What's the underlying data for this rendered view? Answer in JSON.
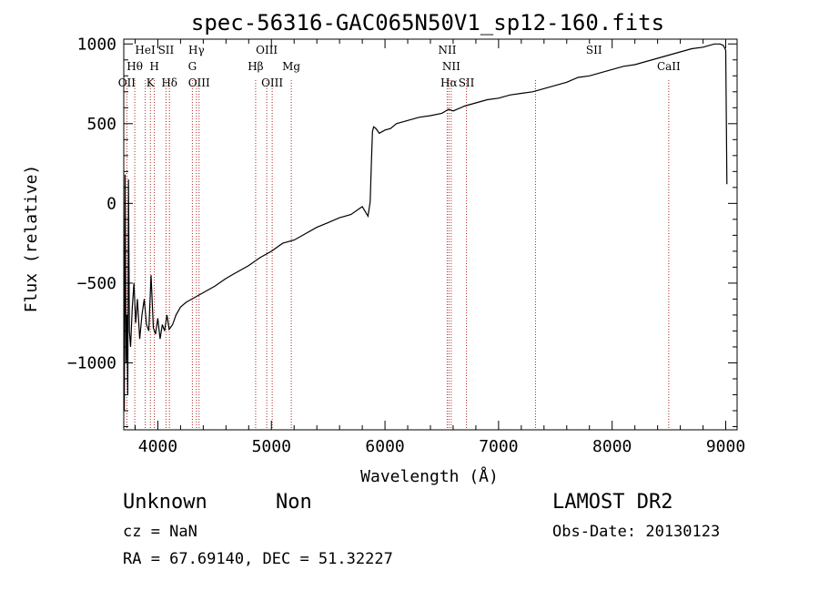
{
  "chart_data": {
    "type": "line",
    "title": "spec-56316-GAC065N50V1_sp12-160.fits",
    "xlabel": "Wavelength (Å)",
    "ylabel": "Flux (relative)",
    "xlim": [
      3700,
      9100
    ],
    "ylim": [
      -1420,
      1030
    ],
    "x_ticks": [
      4000,
      5000,
      6000,
      7000,
      8000,
      9000
    ],
    "y_ticks": [
      -1000,
      -500,
      0,
      500,
      1000
    ],
    "x_tick_labels": [
      "4000",
      "5000",
      "6000",
      "7000",
      "8000",
      "9000"
    ],
    "y_tick_labels": [
      "−1000",
      "−500",
      "0",
      "500",
      "1000"
    ],
    "grid": false,
    "line_color": "#000000",
    "marker_color": "#b22222",
    "series": [
      {
        "x": [
          3705,
          3712,
          3720,
          3728,
          3735,
          3742,
          3750,
          3760,
          3775,
          3790,
          3805,
          3820,
          3840,
          3860,
          3880,
          3900,
          3920,
          3940,
          3960,
          3980,
          4000,
          4020,
          4040,
          4060,
          4080,
          4100,
          4130,
          4160,
          4200,
          4250,
          4300,
          4350,
          4400,
          4450,
          4500,
          4600,
          4700,
          4800,
          4900,
          5000,
          5100,
          5200,
          5300,
          5400,
          5500,
          5600,
          5700,
          5800,
          5850,
          5870,
          5880,
          5890,
          5900,
          5920,
          5950,
          6000,
          6050,
          6100,
          6200,
          6300,
          6400,
          6500,
          6560,
          6600,
          6700,
          6800,
          6900,
          7000,
          7100,
          7200,
          7300,
          7400,
          7500,
          7600,
          7700,
          7800,
          7900,
          8000,
          8100,
          8200,
          8300,
          8400,
          8500,
          8600,
          8700,
          8800,
          8900,
          8950,
          8980,
          9000,
          9010
        ],
        "y": [
          -1300,
          180,
          -1000,
          -700,
          -1200,
          150,
          -800,
          -900,
          -650,
          -500,
          -750,
          -600,
          -850,
          -700,
          -600,
          -760,
          -800,
          -450,
          -780,
          -820,
          -720,
          -850,
          -760,
          -800,
          -700,
          -790,
          -760,
          -700,
          -650,
          -620,
          -600,
          -580,
          -560,
          -540,
          -520,
          -470,
          -430,
          -390,
          -340,
          -300,
          -250,
          -230,
          -190,
          -150,
          -120,
          -90,
          -70,
          -20,
          -80,
          10,
          250,
          450,
          480,
          470,
          440,
          460,
          470,
          500,
          520,
          540,
          550,
          565,
          590,
          580,
          610,
          630,
          650,
          660,
          680,
          690,
          700,
          720,
          740,
          760,
          790,
          800,
          820,
          840,
          860,
          870,
          890,
          910,
          930,
          950,
          970,
          980,
          1000,
          1000,
          990,
          960,
          120
        ]
      }
    ],
    "lines": [
      {
        "name": "OII",
        "x": 3727
      },
      {
        "name": "Hθ",
        "x": 3797
      },
      {
        "name": "HeI",
        "x": 3889
      },
      {
        "name": "K",
        "x": 3934
      },
      {
        "name": "H",
        "x": 3969
      },
      {
        "name": "SII",
        "x": 4072
      },
      {
        "name": "Hδ",
        "x": 4102
      },
      {
        "name": "G",
        "x": 4304
      },
      {
        "name": "Hγ",
        "x": 4340
      },
      {
        "name": "OIII",
        "x": 4363
      },
      {
        "name": "Hβ",
        "x": 4861
      },
      {
        "name": "OIII",
        "x": 4959
      },
      {
        "name": "OIII",
        "x": 5007
      },
      {
        "name": "Mg",
        "x": 5175
      },
      {
        "name": "NII",
        "x": 6548
      },
      {
        "name": "Hα",
        "x": 6563
      },
      {
        "name": "NII",
        "x": 6583
      },
      {
        "name": "SII",
        "x": 6717
      },
      {
        "name": "SII",
        "x": 7325
      },
      {
        "name": "CaII",
        "x": 8498
      }
    ]
  },
  "line_labels": [
    {
      "text": "OII",
      "x": 3727
    },
    {
      "text": "Hθ",
      "x": 3797
    },
    {
      "text": "HeI",
      "x": 3889
    },
    {
      "text": "K",
      "x": 3934
    },
    {
      "text": "H",
      "x": 3969
    },
    {
      "text": "SII",
      "x": 4072
    },
    {
      "text": "Hδ",
      "x": 4102
    },
    {
      "text": "Hγ",
      "x": 4340
    },
    {
      "text": "G",
      "x": 4304
    },
    {
      "text": "OIII",
      "x": 4363
    },
    {
      "text": "OIII",
      "x": 4959
    },
    {
      "text": "Hβ",
      "x": 4861
    },
    {
      "text": "OIII",
      "x": 5007
    },
    {
      "text": "Mg",
      "x": 5175
    },
    {
      "text": "NII",
      "x": 6548
    },
    {
      "text": "NII",
      "x": 6583
    },
    {
      "text": "Hα",
      "x": 6563
    },
    {
      "text": "SII",
      "x": 6717
    },
    {
      "text": "SII",
      "x": 7840
    },
    {
      "text": "CaII",
      "x": 8498
    }
  ],
  "info": {
    "class": "Unknown",
    "subclass": "Non",
    "survey": "LAMOST DR2",
    "cz": "cz = NaN",
    "obs_date": "Obs-Date: 20130123",
    "coords": "RA =  67.69140, DEC =  51.32227"
  }
}
